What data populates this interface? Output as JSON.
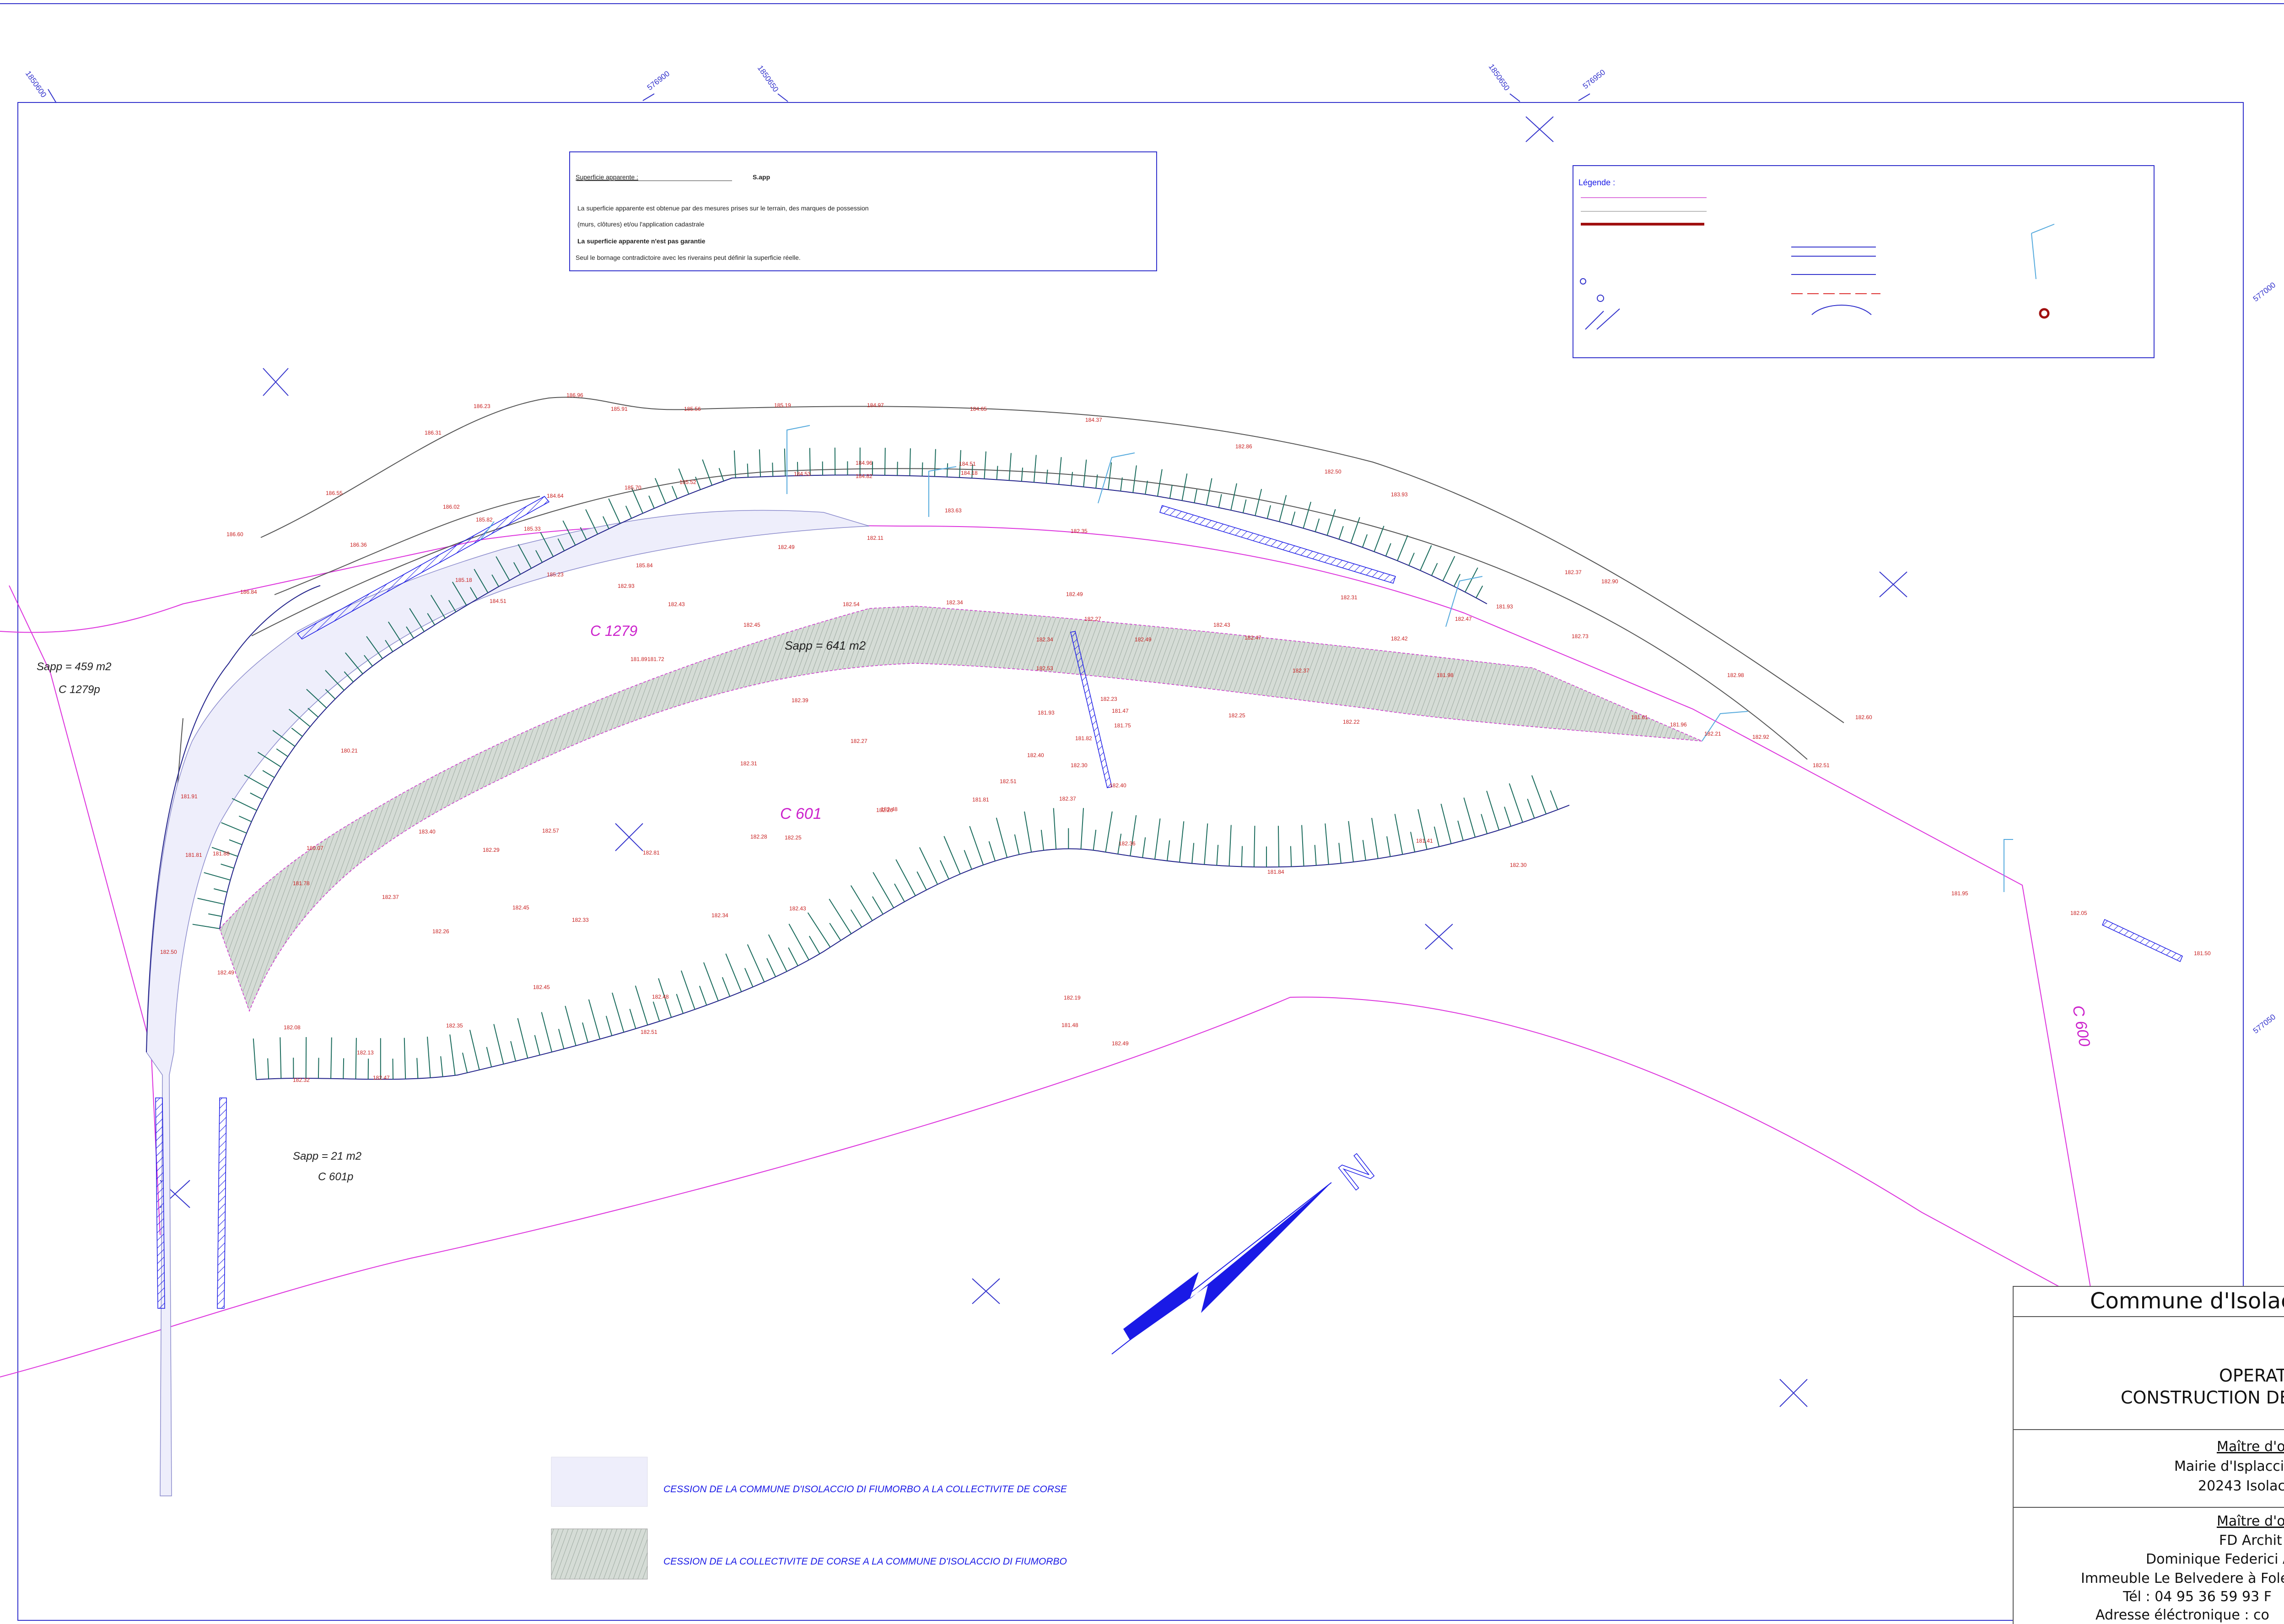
{
  "notice_box": {
    "title": "Superficie apparente :",
    "abbr": "S.app",
    "line1": "La superficie apparente est obtenue par des mesures prises sur le terrain, des marques de possession",
    "line2": "(murs, clôtures) et/ou l'application cadastrale",
    "line3": "La superficie apparente n'est pas garantie",
    "line4": "Seul le bornage contradictoire avec les riverains peut définir la superficie réelle."
  },
  "legend_box": {
    "title": "Légende :"
  },
  "parcels": {
    "c1279": "C 1279",
    "c601": "C 601",
    "c600": "C 600",
    "sapp_459": "Sapp = 459 m2",
    "c1279p": "C 1279p",
    "sapp_641": "Sapp = 641 m2",
    "sapp_21": "Sapp = 21 m2",
    "c601p": "C 601p"
  },
  "bottom_legend": {
    "item1": "CESSION DE LA COMMUNE D'ISOLACCIO DI FIUMORBO A LA COLLECTIVITE DE CORSE",
    "item2": "CESSION DE LA COLLECTIVITE DE CORSE A LA COMMUNE D'ISOLACCIO DI FIUMORBO"
  },
  "north_label": "N",
  "title_block": {
    "commune": "Commune d'Isolac",
    "operation_1": "OPERAT",
    "operation_2": "CONSTRUCTION DE",
    "mo_title": "Maître d'o",
    "mo_line1": "Mairie d'Isplaccio",
    "mo_line2": "20243 Isolaccio",
    "moe_title": "Maître d'o",
    "moe_line1": "FD Archit",
    "moe_line2": "Dominique Federici A",
    "moe_line3": "Immeuble Le Belvedere à Fole",
    "moe_line4": "Tél : 04 95 36 59 93  F",
    "moe_line5": "Adresse éléctronique : co"
  },
  "grid_coords": [
    "1850600",
    "576900",
    "1850650",
    "1850650",
    "576950",
    "577000",
    "577050"
  ],
  "spot_heights": [
    "186.23",
    "186.96",
    "185.91",
    "185.56",
    "185.19",
    "184.97",
    "184.65",
    "184.37",
    "186.31",
    "186.55",
    "185.70",
    "185.52",
    "184.96",
    "184.82",
    "184.51",
    "184.18",
    "184.64",
    "184.53",
    "183.63",
    "182.86",
    "186.02",
    "185.82",
    "185.33",
    "186.36",
    "185.84",
    "185.23",
    "186.60",
    "186.84",
    "185.18",
    "184.51",
    "182.93",
    "182.49",
    "182.50",
    "183.93",
    "182.11",
    "182.35",
    "182.45",
    "182.43",
    "182.34",
    "182.54",
    "182.49",
    "182.27",
    "182.34",
    "182.53",
    "182.49",
    "182.43",
    "182.37",
    "182.47",
    "182.22",
    "181.98",
    "181.89",
    "181.72",
    "182.31",
    "182.27",
    "182.48",
    "181.81",
    "181.93",
    "182.23",
    "182.25",
    "182.42",
    "182.37",
    "181.93",
    "181.82",
    "182.30",
    "182.73",
    "182.98",
    "182.60",
    "182.51",
    "182.92",
    "182.90",
    "182.47",
    "182.31",
    "181.61",
    "181.96",
    "182.21",
    "181.95",
    "182.05",
    "181.50",
    "181.91",
    "181.81",
    "181.88",
    "181.78",
    "180.21",
    "180.07",
    "183.40",
    "182.29",
    "182.57",
    "182.81",
    "182.28",
    "182.26",
    "182.37",
    "182.40",
    "182.51",
    "182.37",
    "182.45",
    "182.33",
    "182.34",
    "182.43",
    "182.25",
    "182.39",
    "182.26",
    "182.45",
    "182.48",
    "182.35",
    "182.36",
    "181.84",
    "181.41",
    "182.30",
    "182.40",
    "181.75",
    "181.47",
    "182.19",
    "181.48",
    "182.49",
    "182.50",
    "182.49",
    "182.08",
    "182.13",
    "182.47",
    "182.51",
    "182.32"
  ]
}
